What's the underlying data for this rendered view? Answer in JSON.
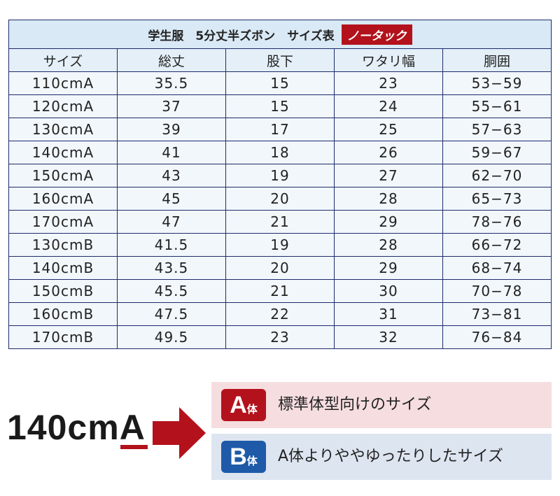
{
  "table": {
    "title": "学生服　5分丈半ズボン　サイズ表",
    "tag": "ノータック",
    "headers": [
      "サイズ",
      "総丈",
      "股下",
      "ワタリ幅",
      "胴囲"
    ],
    "rows": [
      [
        "110cmA",
        "35.5",
        "15",
        "23",
        "53−59"
      ],
      [
        "120cmA",
        "37",
        "15",
        "24",
        "55−61"
      ],
      [
        "130cmA",
        "39",
        "17",
        "25",
        "57−63"
      ],
      [
        "140cmA",
        "41",
        "18",
        "26",
        "59−67"
      ],
      [
        "150cmA",
        "43",
        "19",
        "27",
        "62−70"
      ],
      [
        "160cmA",
        "45",
        "20",
        "28",
        "65−73"
      ],
      [
        "170cmA",
        "47",
        "21",
        "29",
        "78−76"
      ],
      [
        "130cmB",
        "41.5",
        "19",
        "28",
        "66−72"
      ],
      [
        "140cmB",
        "43.5",
        "20",
        "29",
        "68−74"
      ],
      [
        "150cmB",
        "45.5",
        "21",
        "30",
        "70−78"
      ],
      [
        "160cmB",
        "47.5",
        "22",
        "31",
        "73−81"
      ],
      [
        "170cmB",
        "49.5",
        "23",
        "32",
        "76−84"
      ]
    ]
  },
  "legend": {
    "example": "140cm",
    "example_letter": "A",
    "a_letter": "A",
    "a_suffix": "体",
    "a_desc": "標準体型向けのサイズ",
    "b_letter": "B",
    "b_suffix": "体",
    "b_desc": "A体よりややゆったりしたサイズ",
    "colors": {
      "red": "#b3121c",
      "blue": "#1e5aa8"
    }
  }
}
